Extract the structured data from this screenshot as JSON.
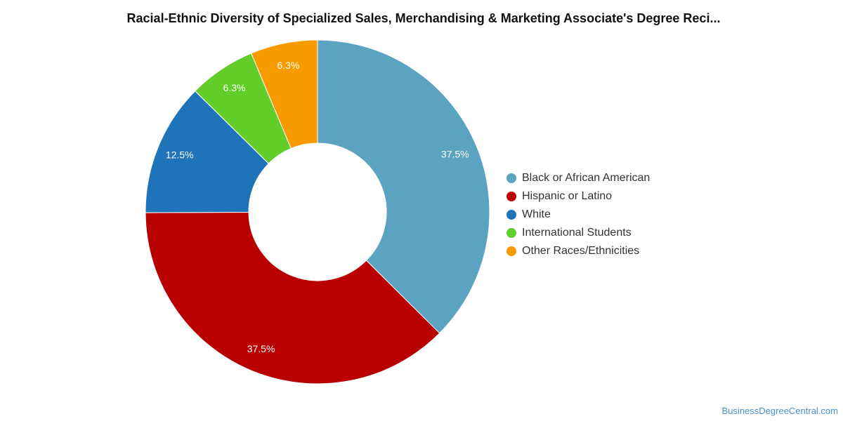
{
  "chart_data": {
    "type": "pie",
    "title": "Racial-Ethnic Diversity of Specialized Sales, Merchandising & Marketing Associate's Degree Reci...",
    "slices": [
      {
        "name": "Black or African American",
        "value": 37.5,
        "label": "37.5%",
        "color": "#5ba3c0"
      },
      {
        "name": "Hispanic or Latino",
        "value": 37.5,
        "label": "37.5%",
        "color": "#b90000"
      },
      {
        "name": "White",
        "value": 12.5,
        "label": "12.5%",
        "color": "#1f73b8"
      },
      {
        "name": "International Students",
        "value": 6.3,
        "label": "6.3%",
        "color": "#62cc28"
      },
      {
        "name": "Other Races/Ethnicities",
        "value": 6.3,
        "label": "6.3%",
        "color": "#f89b00"
      }
    ],
    "legend_position": "right"
  },
  "watermark": "BusinessDegreeCentral.com"
}
